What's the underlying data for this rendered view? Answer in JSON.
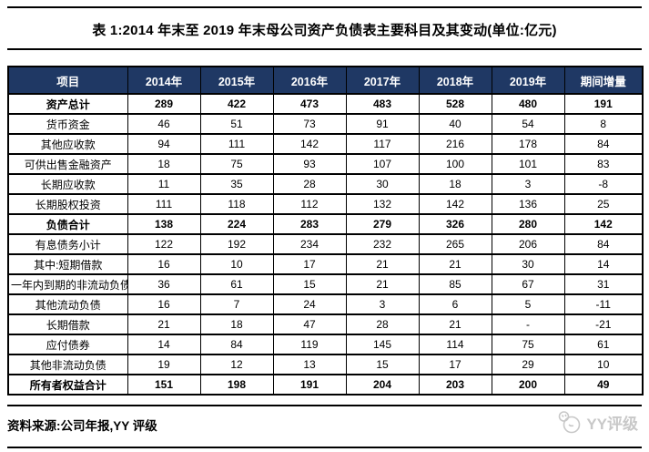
{
  "page": {
    "title": "表 1:2014 年末至 2019 年末母公司资产负债表主要科目及其变动(单位:亿元)",
    "source_note": "资料来源:公司年报,YY 评级",
    "watermark_text": "YY评级"
  },
  "colors": {
    "header_bg": "#1F3864",
    "header_text": "#FFFFFF",
    "negative_value": "#FF5050",
    "border": "#000000",
    "watermark": "#C8C8C8"
  },
  "chart_data": {
    "type": "table",
    "title": "2014 年末至 2019 年末母公司资产负债表主要科目及其变动(单位:亿元)",
    "columns": [
      "项目",
      "2014年",
      "2015年",
      "2016年",
      "2017年",
      "2018年",
      "2019年",
      "期间增量"
    ],
    "rows": [
      {
        "label": "资产总计",
        "type": "total",
        "values": [
          "289",
          "422",
          "473",
          "483",
          "528",
          "480",
          "191"
        ]
      },
      {
        "label": "货币资金",
        "type": "sub",
        "values": [
          "46",
          "51",
          "73",
          "91",
          "40",
          "54",
          "8"
        ]
      },
      {
        "label": "其他应收款",
        "type": "sub",
        "values": [
          "94",
          "111",
          "142",
          "117",
          "216",
          "178",
          "84"
        ]
      },
      {
        "label": "可供出售金融资产",
        "type": "sub",
        "values": [
          "18",
          "75",
          "93",
          "107",
          "100",
          "101",
          "83"
        ]
      },
      {
        "label": "长期应收款",
        "type": "sub",
        "values": [
          "11",
          "35",
          "28",
          "30",
          "18",
          "3",
          "-8"
        ]
      },
      {
        "label": "长期股权投资",
        "type": "sub",
        "values": [
          "111",
          "118",
          "112",
          "132",
          "142",
          "136",
          "25"
        ]
      },
      {
        "label": "负债合计",
        "type": "total",
        "values": [
          "138",
          "224",
          "283",
          "279",
          "326",
          "280",
          "142"
        ]
      },
      {
        "label": "有息债务小计",
        "type": "sub",
        "values": [
          "122",
          "192",
          "234",
          "232",
          "265",
          "206",
          "84"
        ]
      },
      {
        "label": "其中:短期借款",
        "type": "sub",
        "values": [
          "16",
          "10",
          "17",
          "21",
          "21",
          "30",
          "14"
        ]
      },
      {
        "label": "一年内到期的非流动负债",
        "type": "sub",
        "values": [
          "36",
          "61",
          "15",
          "21",
          "85",
          "67",
          "31"
        ]
      },
      {
        "label": "其他流动负债",
        "type": "sub",
        "values": [
          "16",
          "7",
          "24",
          "3",
          "6",
          "5",
          "-11"
        ]
      },
      {
        "label": "长期借款",
        "type": "sub",
        "values": [
          "21",
          "18",
          "47",
          "28",
          "21",
          "-",
          "-21"
        ]
      },
      {
        "label": "应付债券",
        "type": "sub",
        "values": [
          "14",
          "84",
          "119",
          "145",
          "114",
          "75",
          "61"
        ]
      },
      {
        "label": "其他非流动负债",
        "type": "sub",
        "values": [
          "19",
          "12",
          "13",
          "15",
          "17",
          "29",
          "10"
        ]
      },
      {
        "label": "所有者权益合计",
        "type": "total",
        "values": [
          "151",
          "198",
          "191",
          "204",
          "203",
          "200",
          "49"
        ]
      }
    ]
  }
}
